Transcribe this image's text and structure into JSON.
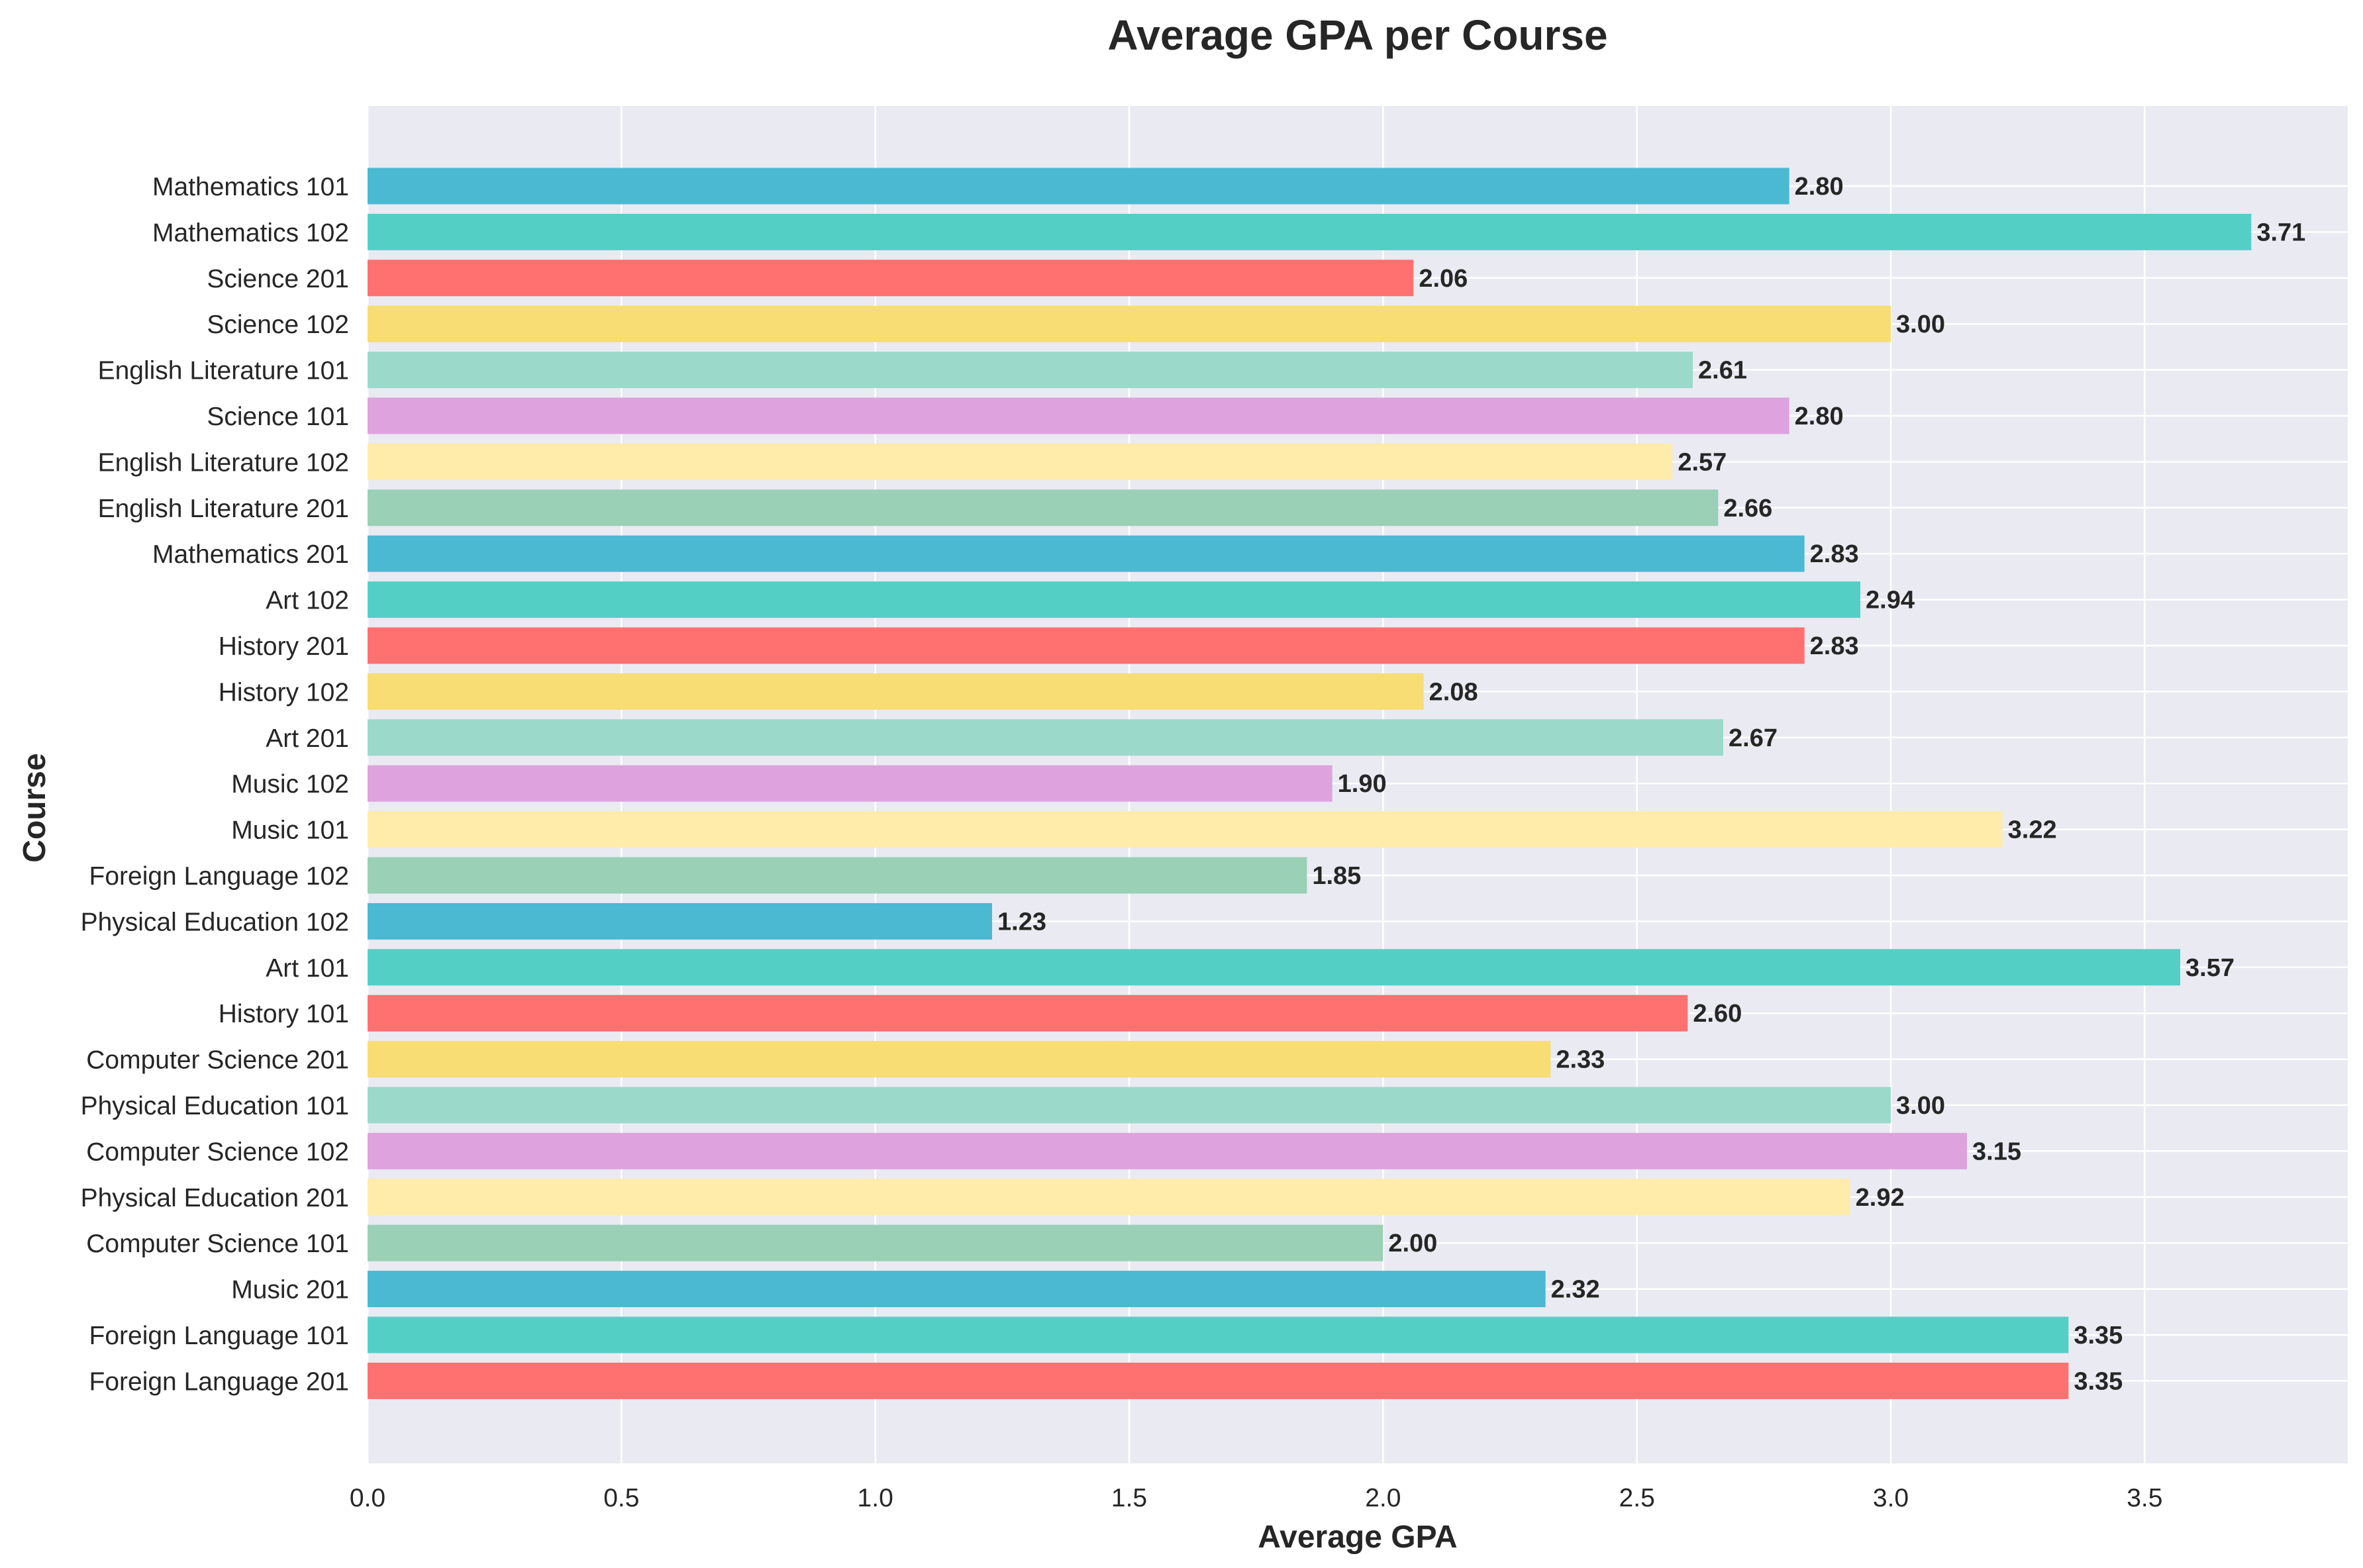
{
  "chart_data": {
    "type": "bar",
    "orientation": "horizontal",
    "title": "Average GPA per Course",
    "xlabel": "Average GPA",
    "ylabel": "Course",
    "xlim": [
      0,
      3.9
    ],
    "xticks": [
      "0.0",
      "0.5",
      "1.0",
      "1.5",
      "2.0",
      "2.5",
      "3.0",
      "3.5"
    ],
    "grid": true,
    "categories": [
      "Mathematics 101",
      "Mathematics 102",
      "Science 201",
      "Science 102",
      "English Literature 101",
      "Science 101",
      "English Literature 102",
      "English Literature 201",
      "Mathematics 201",
      "Art 102",
      "History 201",
      "History 102",
      "Art 201",
      "Music 102",
      "Music 101",
      "Foreign Language 102",
      "Physical Education 102",
      "Art 101",
      "History 101",
      "Computer Science 201",
      "Physical Education 101",
      "Computer Science 102",
      "Physical Education 201",
      "Computer Science 101",
      "Music 201",
      "Foreign Language 101",
      "Foreign Language 201"
    ],
    "values": [
      2.8,
      3.71,
      2.06,
      3.0,
      2.61,
      2.8,
      2.57,
      2.66,
      2.83,
      2.94,
      2.83,
      2.08,
      2.67,
      1.9,
      3.22,
      1.85,
      1.23,
      3.57,
      2.6,
      2.33,
      3.0,
      3.15,
      2.92,
      2.0,
      2.32,
      3.35,
      3.35
    ],
    "value_labels": [
      "2.80",
      "3.71",
      "2.06",
      "3.00",
      "2.61",
      "2.80",
      "2.57",
      "2.66",
      "2.83",
      "2.94",
      "2.83",
      "2.08",
      "2.67",
      "1.90",
      "3.22",
      "1.85",
      "1.23",
      "3.57",
      "2.60",
      "2.33",
      "3.00",
      "3.15",
      "2.92",
      "2.00",
      "2.32",
      "3.35",
      "3.35"
    ],
    "palette": [
      "#45B7D1",
      "#4ECDC4",
      "#FF6B6B",
      "#F7DC6F",
      "#98D8C8",
      "#DDA0DD",
      "#FFEAA7",
      "#96CEB4"
    ],
    "background_color": "#EAEAF2"
  }
}
